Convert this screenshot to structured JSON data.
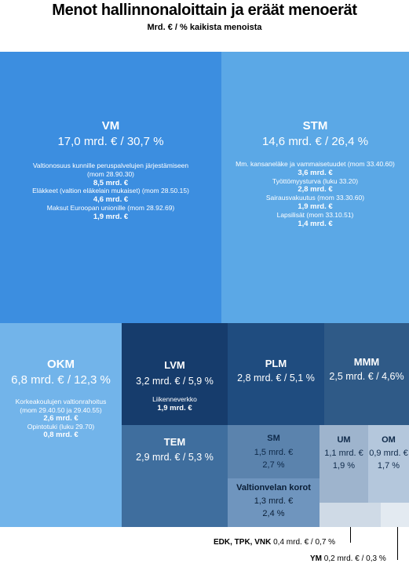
{
  "title": "Menot hallinnonaloittain  ja eräät menoerät",
  "subtitle": "Mrd. € / % kaikista menoista",
  "chart_data": {
    "type": "treemap",
    "unit": "mrd. €",
    "items": [
      {
        "code": "VM",
        "value": 17.0,
        "percent": 30.7,
        "label": "17,0 mrd. € /  30,7 %",
        "color": "#3c8ee0",
        "details": [
          {
            "text": "Valtionosuus kunnille peruspalvelujen järjestämiseen",
            "bold": false
          },
          {
            "text": "(mom 28.90.30)",
            "bold": false
          },
          {
            "text": "8,5 mrd. €",
            "bold": true
          },
          {
            "text": "Eläkkeet (valtion eläkelain mukaiset) (mom 28.50.15)",
            "bold": false
          },
          {
            "text": "4,6 mrd. €",
            "bold": true
          },
          {
            "text": "Maksut Euroopan unionille (mom 28.92.69)",
            "bold": false
          },
          {
            "text": "1,9 mrd. €",
            "bold": true
          }
        ]
      },
      {
        "code": "STM",
        "value": 14.6,
        "percent": 26.4,
        "label": "14,6 mrd. € / 26,4 %",
        "color": "#5ba8e6",
        "details": [
          {
            "text": "Mm. kansaneläke ja vammaisetuudet (mom 33.40.60)",
            "bold": false
          },
          {
            "text": "3,6 mrd. €",
            "bold": true
          },
          {
            "text": "Työttömyysturva (luku 33.20)",
            "bold": false
          },
          {
            "text": "2,8 mrd. €",
            "bold": true
          },
          {
            "text": "Sairausvakuutus (mom 33.30.60)",
            "bold": false
          },
          {
            "text": "1,9 mrd. €",
            "bold": true
          },
          {
            "text": "Lapsilisät (mom 33.10.51)",
            "bold": false
          },
          {
            "text": "1,4 mrd. €",
            "bold": true
          }
        ]
      },
      {
        "code": "OKM",
        "value": 6.8,
        "percent": 12.3,
        "label": "6,8 mrd. € / 12,3 %",
        "color": "#72b4ea",
        "details": [
          {
            "text": "Korkeakoulujen valtionrahoitus",
            "bold": false
          },
          {
            "text": "(mom 29.40.50 ja 29.40.55)",
            "bold": false
          },
          {
            "text": "2,6 mrd. €",
            "bold": true
          },
          {
            "text": "Opintotuki (luku 29.70)",
            "bold": false
          },
          {
            "text": "0,8 mrd. €",
            "bold": true
          }
        ]
      },
      {
        "code": "LVM",
        "value": 3.2,
        "percent": 5.9,
        "label": "3,2 mrd. € / 5,9 %",
        "color": "#163c6c",
        "details": [
          {
            "text": "Liikenneverkko",
            "bold": false
          },
          {
            "text": "1,9 mrd. €",
            "bold": true
          }
        ]
      },
      {
        "code": "PLM",
        "value": 2.8,
        "percent": 5.1,
        "label": "2,8 mrd. € / 5,1 %",
        "color": "#1f4c7f",
        "details": []
      },
      {
        "code": "MMM",
        "value": 2.5,
        "percent": 4.6,
        "label": "2,5 mrd. € / 4,6%",
        "color": "#2f5a87",
        "details": []
      },
      {
        "code": "TEM",
        "value": 2.9,
        "percent": 5.3,
        "label": "2,9 mrd. € / 5,3 %",
        "color": "#3f6e9e",
        "details": []
      },
      {
        "code": "SM",
        "value": 1.5,
        "percent": 2.7,
        "label1": "1,5 mrd. €",
        "label2": "2,7 %",
        "color": "#5b83ad",
        "details": []
      },
      {
        "code": "Valtionvelan korot",
        "value": 1.3,
        "percent": 2.4,
        "label1": "1,3 mrd. €",
        "label2": "2,4 %",
        "color": "#6f95be",
        "details": []
      },
      {
        "code": "UM",
        "value": 1.1,
        "percent": 1.9,
        "label1": "1,1 mrd. €",
        "label2": "1,9 %",
        "color": "#9eb4cd",
        "details": []
      },
      {
        "code": "OM",
        "value": 0.9,
        "percent": 1.7,
        "label1": "0,9 mrd. €",
        "label2": "1,7 %",
        "color": "#b4c7dc",
        "details": []
      },
      {
        "code": "EDK, TPK, VNK",
        "value": 0.4,
        "percent": 0.7,
        "label": "0,4 mrd. € / 0,7 %",
        "color": "#cfdae6",
        "details": []
      },
      {
        "code": "YM",
        "value": 0.2,
        "percent": 0.3,
        "label": "0,2 mrd. € / 0,3 %",
        "color": "#e3eaf1",
        "details": []
      }
    ]
  }
}
